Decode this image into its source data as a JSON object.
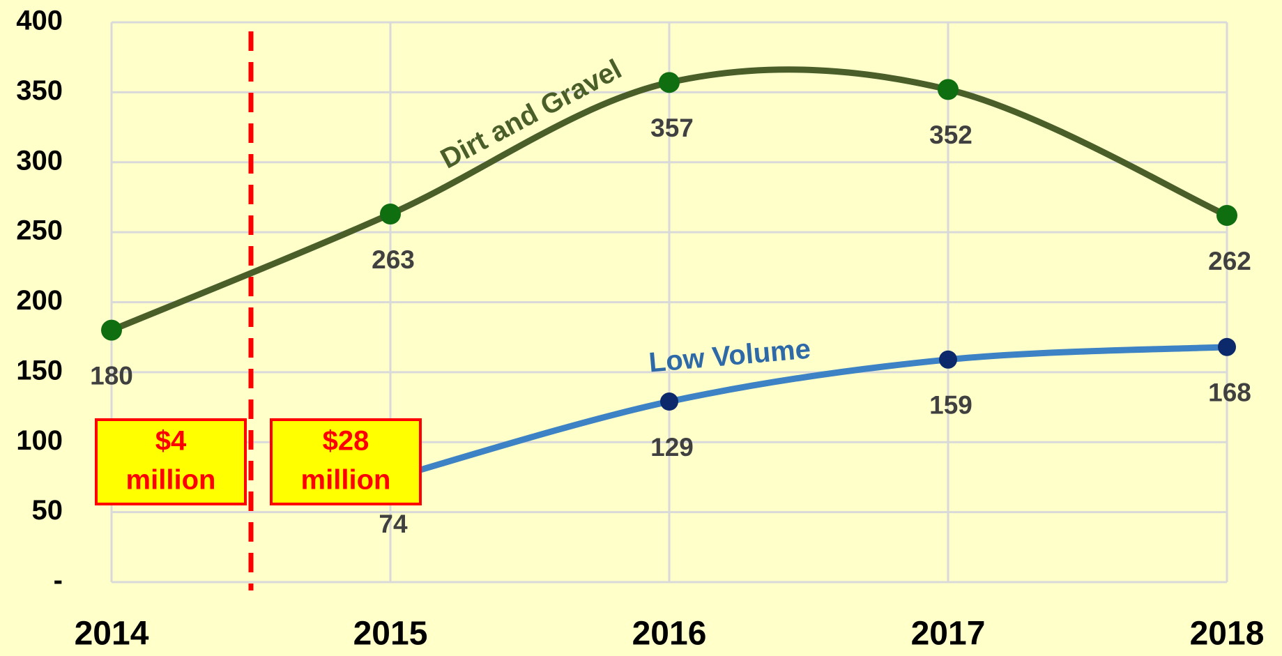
{
  "chart_data": {
    "type": "line",
    "categories": [
      "2014",
      "2015",
      "2016",
      "2017",
      "2018"
    ],
    "series": [
      {
        "name": "Dirt and Gravel",
        "color": "#4a5e2a",
        "marker_color": "#0f6e0f",
        "values": [
          180,
          263,
          357,
          352,
          262
        ]
      },
      {
        "name": "Low Volume",
        "color": "#3d82c4",
        "marker_color": "#0c2a6b",
        "values": [
          null,
          74,
          129,
          159,
          168
        ]
      }
    ],
    "ylim": [
      0,
      400
    ],
    "yticks": [
      {
        "value": 0,
        "label": "-"
      },
      50,
      100,
      150,
      200,
      250,
      300,
      350,
      400
    ],
    "grid": true,
    "annotations": [
      [
        "$4",
        "million"
      ],
      [
        "$28",
        "million"
      ]
    ]
  }
}
